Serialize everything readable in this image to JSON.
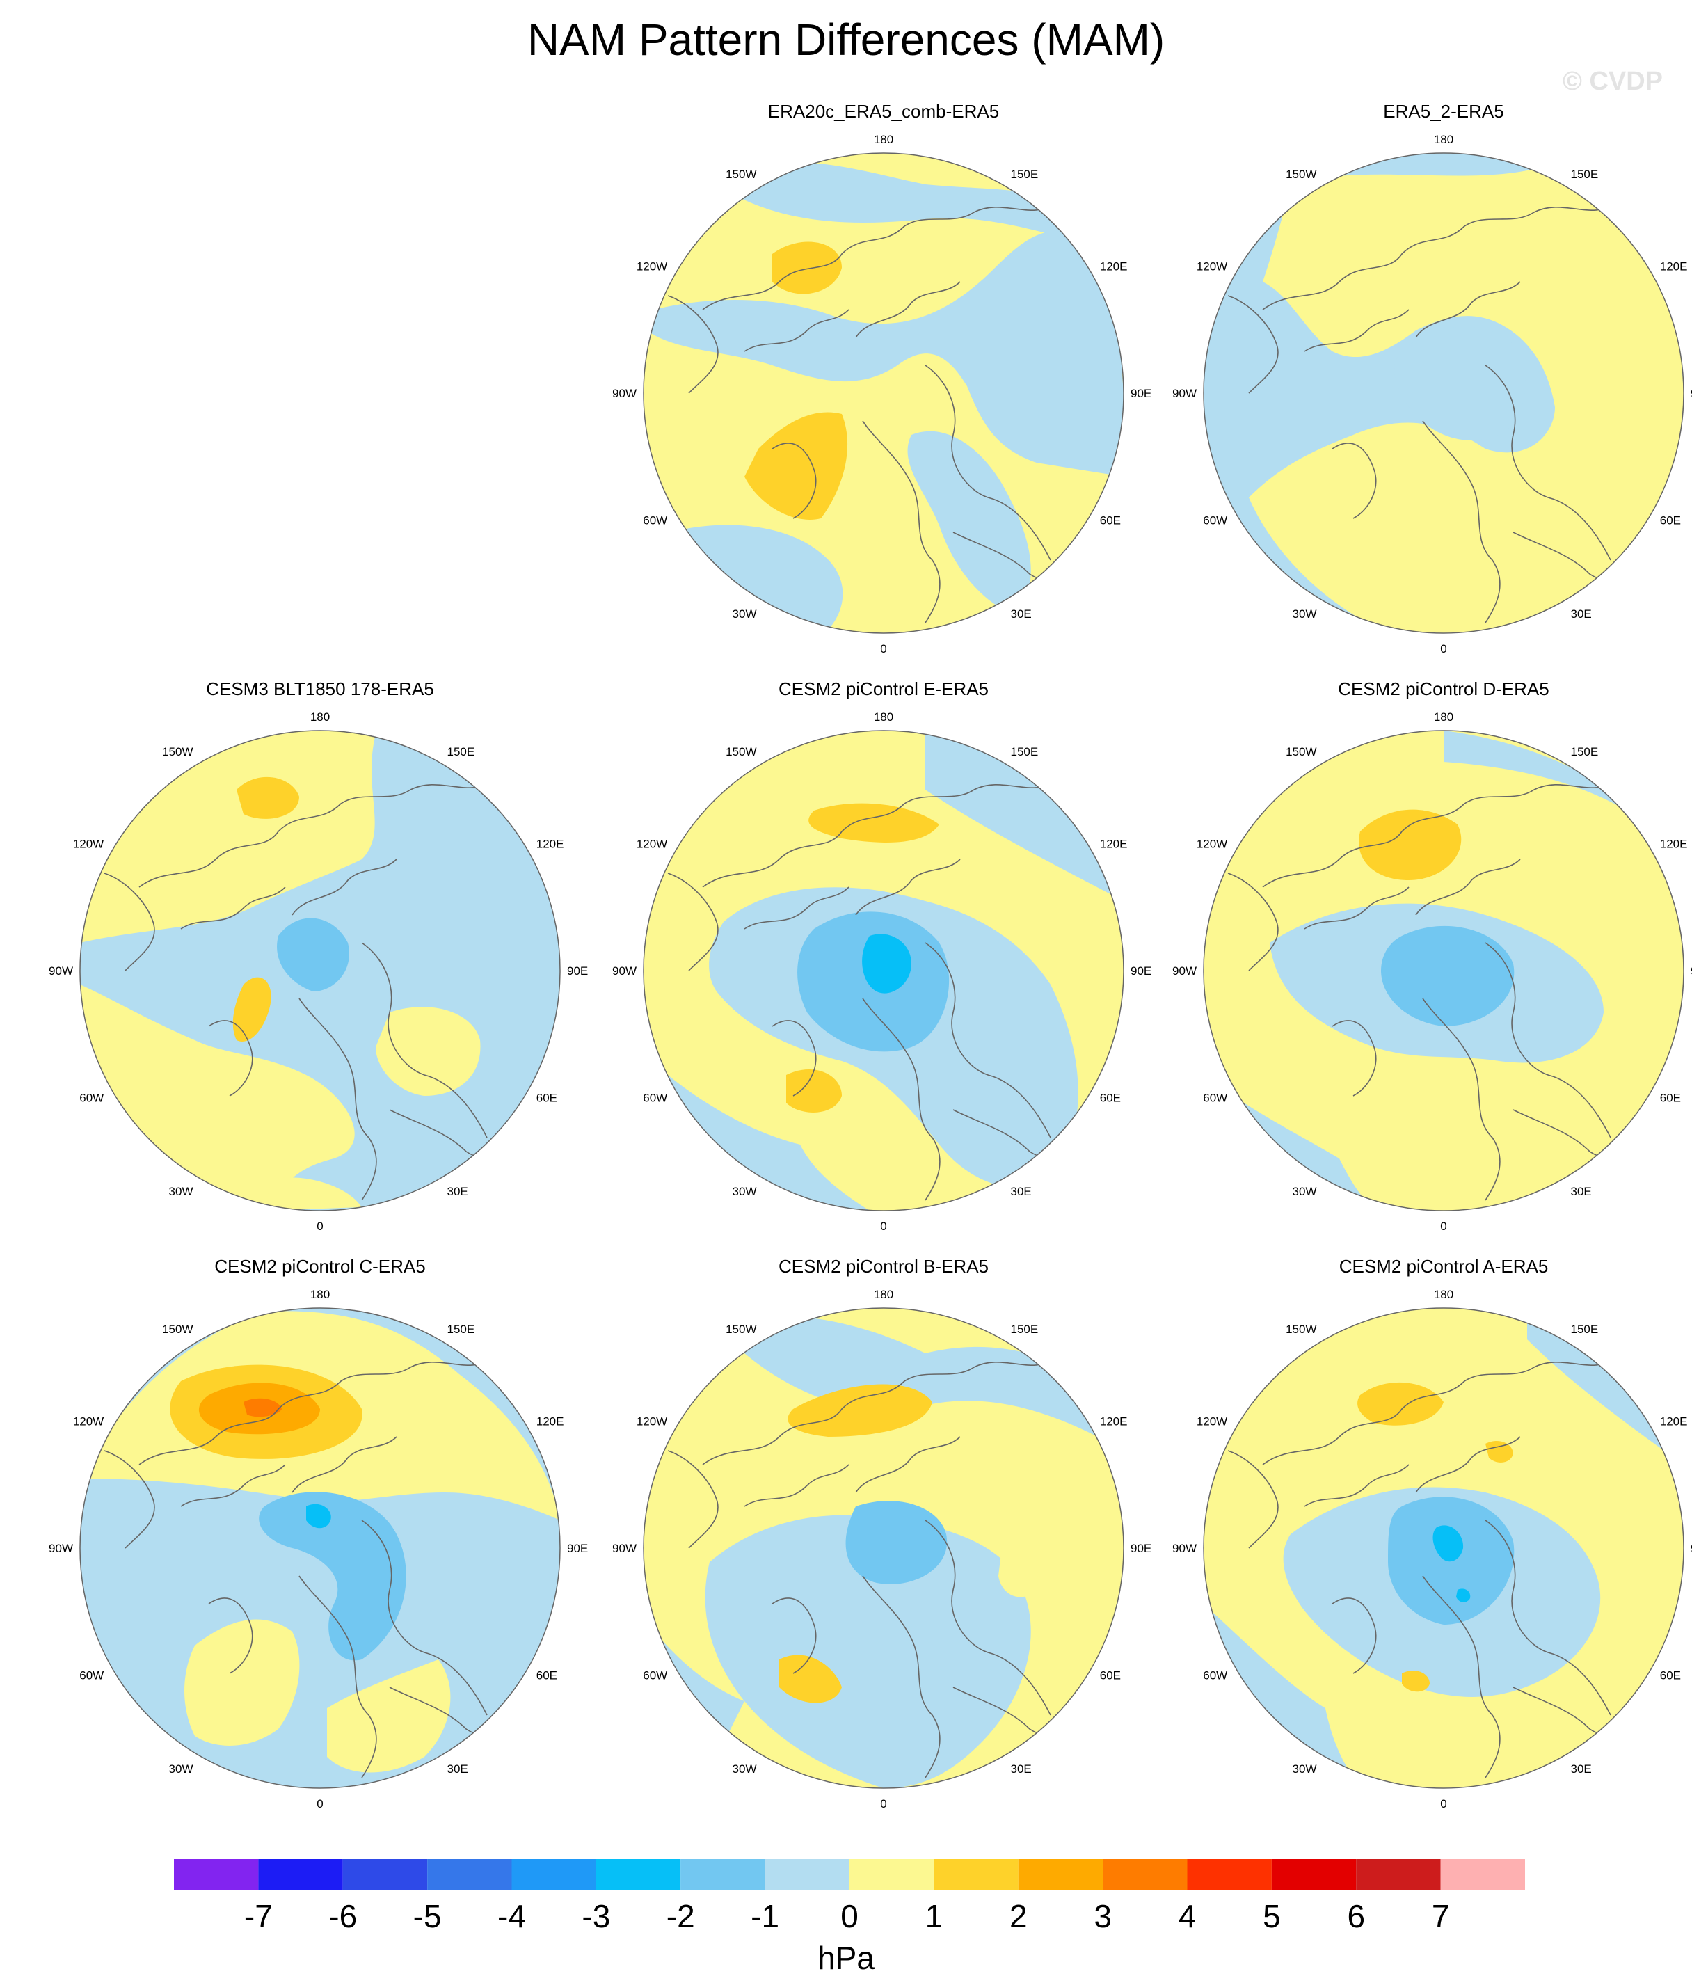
{
  "title": "NAM Pattern Differences (MAM)",
  "watermark": "© CVDP",
  "longitude_labels": {
    "top": "180",
    "bottom": "0",
    "left": "90W",
    "right": "90E",
    "tl1": "150W",
    "tl2": "120W",
    "bl1": "60W",
    "bl2": "30W",
    "tr1": "150E",
    "tr2": "120E",
    "br1": "60E",
    "br2": "30E"
  },
  "panels": [
    {
      "id": "p1",
      "title": "ERA20c_ERA5_comb-ERA5",
      "row": 0,
      "col": 1
    },
    {
      "id": "p2",
      "title": "ERA5_2-ERA5",
      "row": 0,
      "col": 2
    },
    {
      "id": "p3",
      "title": "CESM3 BLT1850 178-ERA5",
      "row": 1,
      "col": 0
    },
    {
      "id": "p4",
      "title": "CESM2 piControl E-ERA5",
      "row": 1,
      "col": 1
    },
    {
      "id": "p5",
      "title": "CESM2 piControl D-ERA5",
      "row": 1,
      "col": 2
    },
    {
      "id": "p6",
      "title": "CESM2 piControl C-ERA5",
      "row": 2,
      "col": 0
    },
    {
      "id": "p7",
      "title": "CESM2 piControl B-ERA5",
      "row": 2,
      "col": 1
    },
    {
      "id": "p8",
      "title": "CESM2 piControl A-ERA5",
      "row": 2,
      "col": 2
    }
  ],
  "colorbar": {
    "units": "hPa",
    "labels": [
      "-7",
      "-6",
      "-5",
      "-4",
      "-3",
      "-2",
      "-1",
      "0",
      "1",
      "2",
      "3",
      "4",
      "5",
      "6",
      "7"
    ],
    "colors": [
      "#8224f0",
      "#1c1cf5",
      "#2e4ae8",
      "#3577ea",
      "#1f99f7",
      "#06bff7",
      "#72c7f1",
      "#b3ddf1",
      "#fcf891",
      "#fed22a",
      "#feaa00",
      "#fe7c00",
      "#fe3100",
      "#e30000",
      "#cd1c1c",
      "#feb0b1"
    ]
  },
  "palette": {
    "negative": "#b3ddf1",
    "positive": "#fcf891",
    "pos2": "#fed22a",
    "pos3": "#feaa00",
    "pos4": "#fe7c00",
    "neg2": "#72c7f1",
    "neg3": "#06bff7",
    "coast": "#666666"
  }
}
